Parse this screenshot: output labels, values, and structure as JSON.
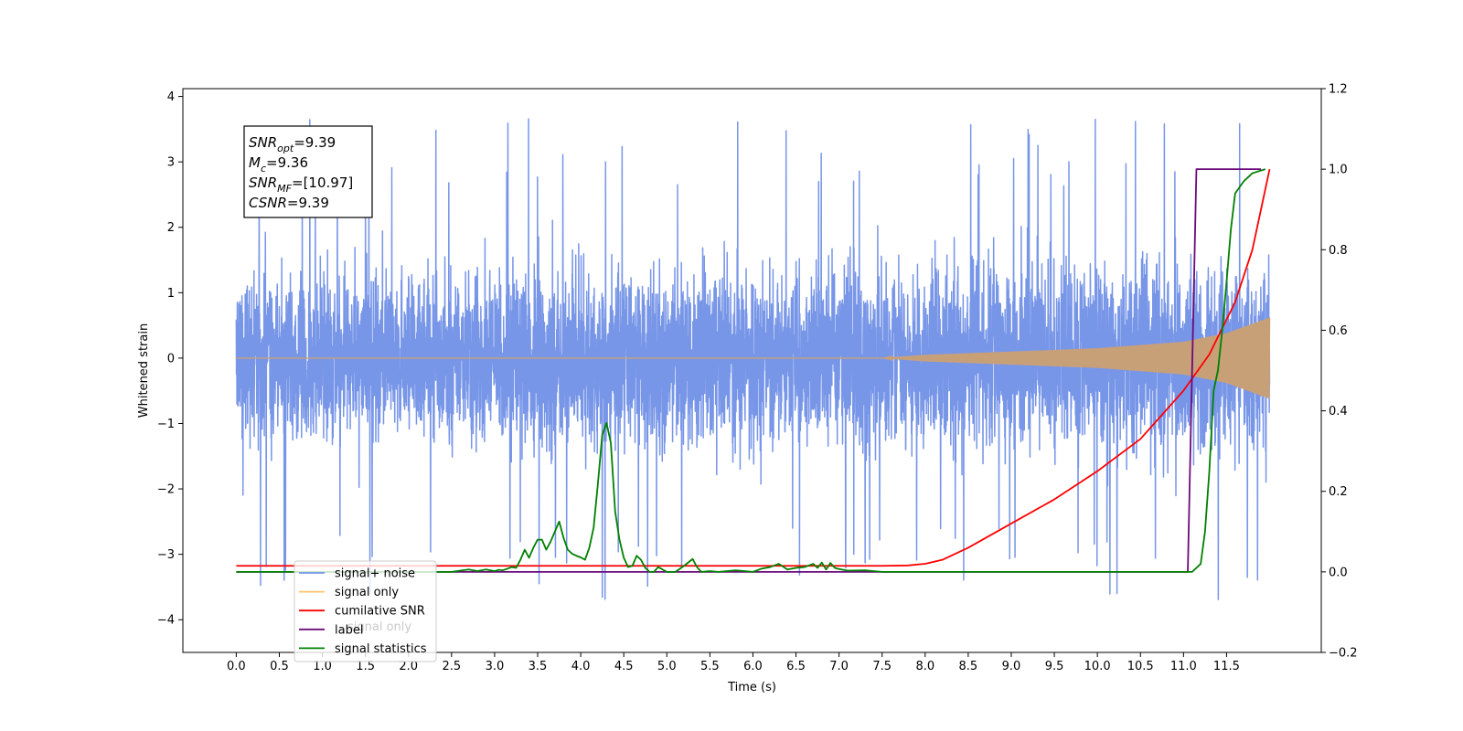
{
  "chart_data": {
    "type": "line",
    "title": "",
    "xlabel": "Time (s)",
    "ylabel": "Whitened strain",
    "xlim": [
      -0.62,
      12.6
    ],
    "ylim": [
      -4.5,
      4.12
    ],
    "y2lim": [
      -0.2,
      1.2
    ],
    "x_ticks": [
      "0.0",
      "0.5",
      "1.0",
      "1.5",
      "2.0",
      "2.5",
      "3.0",
      "3.5",
      "4.0",
      "4.5",
      "5.0",
      "5.5",
      "6.0",
      "6.5",
      "7.0",
      "7.5",
      "8.0",
      "8.5",
      "9.0",
      "9.5",
      "10.0",
      "10.5",
      "11.0",
      "11.5"
    ],
    "y_ticks": [
      "4",
      "3",
      "2",
      "1",
      "0",
      "−1",
      "−2",
      "−3",
      "−4"
    ],
    "y2_ticks": [
      "1.2",
      "1.0",
      "0.8",
      "0.6",
      "0.4",
      "0.2",
      "0.0",
      "−0.2"
    ],
    "annotation": {
      "snr_opt": {
        "base": "SNR",
        "sub": "opt",
        "value": "=9.39"
      },
      "mc": {
        "base": "M",
        "sub": "c",
        "value": "=9.36"
      },
      "snr_mf": {
        "base": "SNR",
        "sub": "MF",
        "value": "=[10.97]"
      },
      "csnr": {
        "base": "CSNR",
        "sub": "",
        "value": "=9.39"
      }
    },
    "legend": {
      "placement": "lower-left",
      "entries": [
        {
          "label": "signal+ noise",
          "color": "#7896e8"
        },
        {
          "label": "signal only",
          "color": "#ffc36b"
        },
        {
          "label": "cumilative SNR",
          "color": "#ff0000"
        },
        {
          "label": "label",
          "color": "#6a0a7a"
        },
        {
          "label": "signal statistics",
          "color": "#008000"
        }
      ],
      "ghost_text": "signal only"
    },
    "series": [
      {
        "name": "signal+ noise",
        "axis": "left",
        "color": "#7896e8",
        "t_start": 0.0,
        "t_end": 12.0,
        "note_values": "dense noise, amplitude roughly ±2 to ±3.7"
      },
      {
        "name": "signal only",
        "axis": "left",
        "color": "#c8a078",
        "envelope": {
          "x": [
            0.0,
            7.5,
            8.0,
            9.0,
            10.0,
            11.0,
            11.5,
            12.0
          ],
          "y": [
            0.0,
            0.0,
            0.05,
            0.1,
            0.15,
            0.25,
            0.38,
            0.62
          ]
        }
      },
      {
        "name": "cumilative SNR",
        "axis": "right",
        "color": "#ff0000",
        "x": [
          0.0,
          7.5,
          7.8,
          8.0,
          8.2,
          8.5,
          9.0,
          9.5,
          10.0,
          10.5,
          11.0,
          11.3,
          11.6,
          11.8,
          12.0
        ],
        "y": [
          0.015,
          0.015,
          0.016,
          0.02,
          0.03,
          0.06,
          0.12,
          0.18,
          0.25,
          0.33,
          0.45,
          0.54,
          0.67,
          0.8,
          1.0
        ]
      },
      {
        "name": "label",
        "axis": "right",
        "color": "#6a0a7a",
        "x": [
          0.0,
          11.05,
          11.1,
          11.15,
          11.9
        ],
        "y": [
          0.0,
          0.0,
          0.5,
          1.0,
          1.0
        ]
      },
      {
        "name": "signal statistics",
        "axis": "right",
        "color": "#008000",
        "x": [
          0.0,
          2.5,
          2.6,
          2.7,
          2.8,
          2.9,
          3.0,
          3.05,
          3.1,
          3.2,
          3.25,
          3.3,
          3.35,
          3.4,
          3.45,
          3.5,
          3.55,
          3.6,
          3.65,
          3.7,
          3.75,
          3.8,
          3.85,
          3.9,
          3.95,
          4.0,
          4.05,
          4.1,
          4.15,
          4.2,
          4.25,
          4.3,
          4.35,
          4.4,
          4.45,
          4.5,
          4.55,
          4.6,
          4.65,
          4.7,
          4.75,
          4.8,
          4.85,
          4.9,
          5.0,
          5.1,
          5.2,
          5.3,
          5.35,
          5.4,
          5.5,
          5.6,
          5.8,
          6.0,
          6.1,
          6.2,
          6.3,
          6.4,
          6.5,
          6.6,
          6.7,
          6.75,
          6.8,
          6.85,
          6.9,
          6.95,
          7.0,
          7.1,
          7.3,
          7.5,
          7.7,
          10.9,
          11.1,
          11.2,
          11.25,
          11.3,
          11.35,
          11.4,
          11.45,
          11.5,
          11.55,
          11.6,
          11.7,
          11.8,
          11.95
        ],
        "y": [
          0.0,
          0.0,
          0.003,
          0.006,
          0.002,
          0.006,
          0.002,
          0.005,
          0.004,
          0.012,
          0.01,
          0.03,
          0.055,
          0.035,
          0.06,
          0.08,
          0.08,
          0.055,
          0.075,
          0.1,
          0.125,
          0.085,
          0.055,
          0.045,
          0.04,
          0.036,
          0.03,
          0.06,
          0.11,
          0.22,
          0.34,
          0.37,
          0.32,
          0.15,
          0.08,
          0.035,
          0.012,
          0.015,
          0.04,
          0.03,
          0.01,
          0.0,
          0.0,
          0.012,
          0.0,
          0.0,
          0.015,
          0.032,
          0.012,
          0.0,
          0.002,
          0.0,
          0.004,
          0.0,
          0.008,
          0.012,
          0.02,
          0.006,
          0.01,
          0.012,
          0.02,
          0.01,
          0.023,
          0.006,
          0.022,
          0.01,
          0.007,
          0.003,
          0.004,
          0.0,
          0.0,
          0.0,
          0.0,
          0.02,
          0.1,
          0.25,
          0.45,
          0.5,
          0.6,
          0.72,
          0.85,
          0.94,
          0.97,
          0.99,
          1.0
        ]
      }
    ]
  }
}
